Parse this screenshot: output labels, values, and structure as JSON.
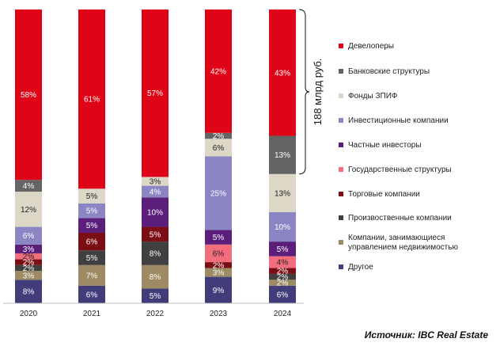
{
  "chart_data": {
    "type": "bar",
    "stacked": true,
    "normalized": true,
    "categories": [
      "2020",
      "2021",
      "2022",
      "2023",
      "2024"
    ],
    "series": [
      {
        "name": "Другое",
        "color": "#403d7a",
        "values": [
          8,
          6,
          5,
          9,
          6
        ]
      },
      {
        "name": "Компании, занимающиеся управлением недвижимостью",
        "color": "#9c8b63",
        "values": [
          3,
          7,
          8,
          3,
          2
        ]
      },
      {
        "name": "Произвоственные компании",
        "color": "#404040",
        "values": [
          2,
          5,
          8,
          0,
          2
        ]
      },
      {
        "name": "Торговые компании",
        "color": "#7b0e14",
        "values": [
          2,
          6,
          5,
          2,
          2
        ]
      },
      {
        "name": "Государственные структуры",
        "color": "#f36e7c",
        "values": [
          2,
          0,
          0,
          6,
          4
        ]
      },
      {
        "name": "Частные инвесторы",
        "color": "#5b1f7b",
        "values": [
          3,
          5,
          10,
          5,
          5
        ]
      },
      {
        "name": "Инвестиционные компании",
        "color": "#8a86c4",
        "values": [
          6,
          5,
          4,
          25,
          10
        ]
      },
      {
        "name": "Фонды ЗПИФ",
        "color": "#ddd7c8",
        "values": [
          12,
          5,
          3,
          6,
          13
        ]
      },
      {
        "name": "Банковские структуры",
        "color": "#646464",
        "values": [
          4,
          0,
          0,
          2,
          13
        ]
      },
      {
        "name": "Девелоперы",
        "color": "#df0417",
        "values": [
          58,
          61,
          57,
          42,
          43
        ]
      }
    ],
    "legend": {
      "placement": "right",
      "order": [
        "Девелоперы",
        "Банковские структуры",
        "Фонды ЗПИФ",
        "Инвестиционные компании",
        "Частные инвесторы",
        "Государственные структуры",
        "Торговые компании",
        "Произвоственные компании",
        "Компании, занимающиеся управлением недвижимостью",
        "Другое"
      ]
    },
    "annotation": {
      "text": "188 млрд руб.",
      "category": "2024",
      "series": [
        "Девелоперы",
        "Банковские структуры"
      ]
    },
    "ylim": [
      0,
      100
    ],
    "grid": false,
    "value_suffix": "%"
  },
  "source": "Источник: IBC Real Estate"
}
